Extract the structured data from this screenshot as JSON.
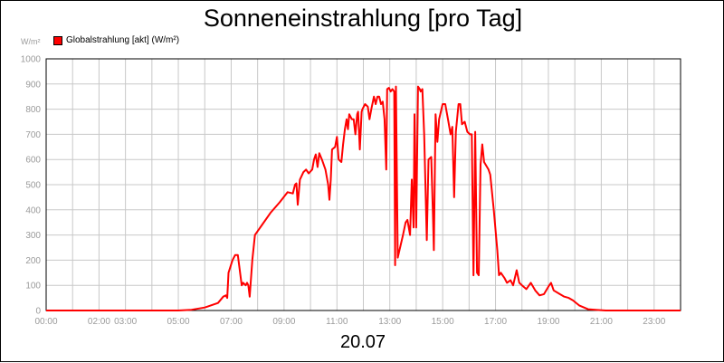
{
  "chart_data": {
    "type": "line",
    "title": "Sonneneinstrahlung [pro Tag]",
    "ylabel": "W/m²",
    "date": "20.07",
    "ylim": [
      0,
      1000
    ],
    "xlim": [
      "00:00",
      "24:00"
    ],
    "yticks": [
      "0",
      "100",
      "200",
      "300",
      "400",
      "500",
      "600",
      "700",
      "800",
      "900",
      "1000"
    ],
    "xticks": [
      "00:00",
      "02:00",
      "03:00",
      "05:00",
      "07:00",
      "09:00",
      "11:00",
      "13:00",
      "15:00",
      "17:00",
      "19:00",
      "21:00",
      "23:00"
    ],
    "grid": true,
    "legend": "top-left",
    "series": [
      {
        "name": "Globalstrahlung [akt] (W/m²)",
        "color": "#ff0000",
        "points": [
          [
            "00:00",
            0
          ],
          [
            "05:00",
            0
          ],
          [
            "05:30",
            3
          ],
          [
            "06:00",
            12
          ],
          [
            "06:30",
            30
          ],
          [
            "06:42",
            55
          ],
          [
            "06:48",
            60
          ],
          [
            "06:51",
            50
          ],
          [
            "06:54",
            150
          ],
          [
            "07:03",
            200
          ],
          [
            "07:09",
            220
          ],
          [
            "07:15",
            220
          ],
          [
            "07:24",
            100
          ],
          [
            "07:27",
            110
          ],
          [
            "07:33",
            100
          ],
          [
            "07:36",
            110
          ],
          [
            "07:39",
            100
          ],
          [
            "07:42",
            55
          ],
          [
            "07:48",
            200
          ],
          [
            "07:54",
            300
          ],
          [
            "08:10",
            340
          ],
          [
            "08:30",
            390
          ],
          [
            "08:50",
            430
          ],
          [
            "09:08",
            470
          ],
          [
            "09:20",
            465
          ],
          [
            "09:25",
            500
          ],
          [
            "09:28",
            505
          ],
          [
            "09:31",
            420
          ],
          [
            "09:36",
            520
          ],
          [
            "09:44",
            550
          ],
          [
            "09:50",
            560
          ],
          [
            "09:56",
            545
          ],
          [
            "10:04",
            560
          ],
          [
            "10:08",
            600
          ],
          [
            "10:12",
            620
          ],
          [
            "10:16",
            570
          ],
          [
            "10:20",
            625
          ],
          [
            "10:26",
            600
          ],
          [
            "10:34",
            560
          ],
          [
            "10:40",
            500
          ],
          [
            "10:43",
            440
          ],
          [
            "10:46",
            520
          ],
          [
            "10:49",
            640
          ],
          [
            "10:56",
            650
          ],
          [
            "11:00",
            690
          ],
          [
            "11:04",
            600
          ],
          [
            "11:10",
            590
          ],
          [
            "11:14",
            660
          ],
          [
            "11:18",
            720
          ],
          [
            "11:22",
            760
          ],
          [
            "11:25",
            720
          ],
          [
            "11:28",
            780
          ],
          [
            "11:34",
            760
          ],
          [
            "11:38",
            760
          ],
          [
            "11:42",
            700
          ],
          [
            "11:46",
            780
          ],
          [
            "11:48",
            790
          ],
          [
            "11:52",
            640
          ],
          [
            "11:56",
            790
          ],
          [
            "11:58",
            800
          ],
          [
            "12:04",
            820
          ],
          [
            "12:10",
            810
          ],
          [
            "12:14",
            760
          ],
          [
            "12:18",
            800
          ],
          [
            "12:24",
            850
          ],
          [
            "12:28",
            820
          ],
          [
            "12:32",
            850
          ],
          [
            "12:36",
            850
          ],
          [
            "12:40",
            820
          ],
          [
            "12:44",
            830
          ],
          [
            "12:48",
            760
          ],
          [
            "12:52",
            560
          ],
          [
            "12:54",
            880
          ],
          [
            "12:58",
            885
          ],
          [
            "13:02",
            870
          ],
          [
            "13:06",
            880
          ],
          [
            "13:10",
            870
          ],
          [
            "13:12",
            180
          ],
          [
            "13:14",
            890
          ],
          [
            "13:18",
            210
          ],
          [
            "13:30",
            300
          ],
          [
            "13:36",
            350
          ],
          [
            "13:40",
            360
          ],
          [
            "13:46",
            300
          ],
          [
            "13:50",
            520
          ],
          [
            "13:54",
            330
          ],
          [
            "13:56",
            780
          ],
          [
            "14:00",
            330
          ],
          [
            "14:04",
            890
          ],
          [
            "14:08",
            880
          ],
          [
            "14:10",
            870
          ],
          [
            "14:14",
            880
          ],
          [
            "14:18",
            700
          ],
          [
            "14:24",
            280
          ],
          [
            "14:28",
            600
          ],
          [
            "14:34",
            610
          ],
          [
            "14:38",
            380
          ],
          [
            "14:40",
            240
          ],
          [
            "14:44",
            780
          ],
          [
            "14:48",
            670
          ],
          [
            "14:52",
            760
          ],
          [
            "15:00",
            820
          ],
          [
            "15:06",
            820
          ],
          [
            "15:12",
            760
          ],
          [
            "15:18",
            700
          ],
          [
            "15:22",
            730
          ],
          [
            "15:26",
            450
          ],
          [
            "15:30",
            710
          ],
          [
            "15:36",
            820
          ],
          [
            "15:40",
            820
          ],
          [
            "15:44",
            740
          ],
          [
            "15:50",
            750
          ],
          [
            "15:56",
            710
          ],
          [
            "16:02",
            700
          ],
          [
            "16:06",
            700
          ],
          [
            "16:10",
            140
          ],
          [
            "16:14",
            710
          ],
          [
            "16:18",
            150
          ],
          [
            "16:22",
            140
          ],
          [
            "16:26",
            580
          ],
          [
            "16:30",
            660
          ],
          [
            "16:34",
            590
          ],
          [
            "16:44",
            560
          ],
          [
            "16:48",
            540
          ],
          [
            "16:56",
            400
          ],
          [
            "17:04",
            240
          ],
          [
            "17:08",
            140
          ],
          [
            "17:12",
            150
          ],
          [
            "17:16",
            140
          ],
          [
            "17:20",
            130
          ],
          [
            "17:26",
            110
          ],
          [
            "17:34",
            120
          ],
          [
            "17:40",
            100
          ],
          [
            "17:48",
            160
          ],
          [
            "17:54",
            110
          ],
          [
            "18:00",
            100
          ],
          [
            "18:10",
            85
          ],
          [
            "18:20",
            110
          ],
          [
            "18:30",
            80
          ],
          [
            "18:40",
            60
          ],
          [
            "18:50",
            65
          ],
          [
            "19:00",
            95
          ],
          [
            "19:06",
            110
          ],
          [
            "19:12",
            80
          ],
          [
            "19:26",
            65
          ],
          [
            "19:36",
            55
          ],
          [
            "19:46",
            50
          ],
          [
            "19:56",
            40
          ],
          [
            "20:10",
            20
          ],
          [
            "20:30",
            5
          ],
          [
            "20:50",
            2
          ],
          [
            "21:10",
            0
          ],
          [
            "24:00",
            0
          ]
        ]
      }
    ]
  }
}
